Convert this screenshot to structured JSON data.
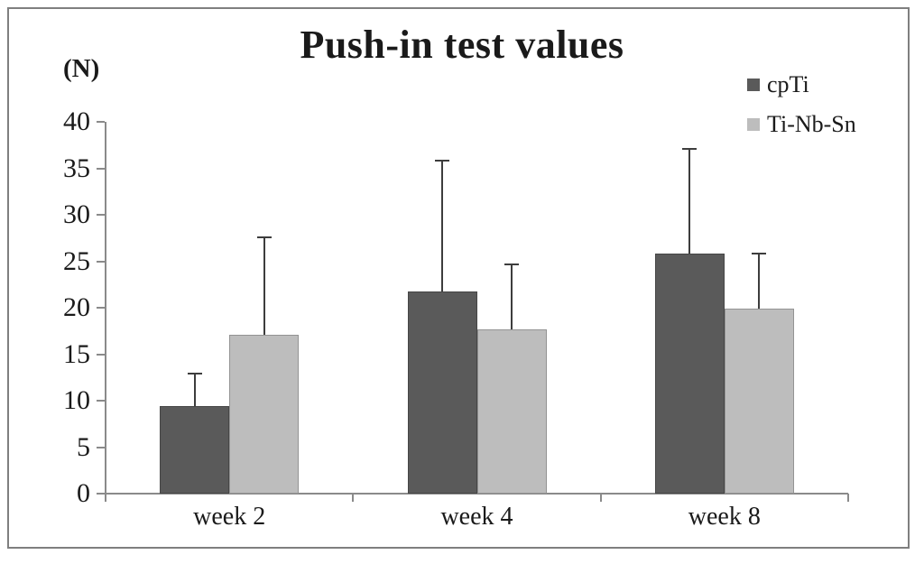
{
  "chart_data": {
    "type": "bar",
    "title": "Push-in test values",
    "ylabel": "(N)",
    "xlabel": "",
    "categories": [
      "week 2",
      "week 4",
      "week 8"
    ],
    "series": [
      {
        "name": "cpTi",
        "color": "#5a5a5a",
        "values": [
          9.4,
          21.7,
          25.8
        ],
        "errors": [
          3.5,
          14.1,
          11.3
        ]
      },
      {
        "name": "Ti-Nb-Sn",
        "color": "#bdbdbd",
        "values": [
          17.1,
          17.7,
          19.9
        ],
        "errors": [
          10.5,
          7.0,
          5.9
        ]
      }
    ],
    "ylim": [
      0,
      40
    ],
    "ytick_step": 5,
    "grid": false,
    "legend_position": "top-right",
    "axis_color": "#8a8a8a",
    "error_bar_color": "#3d3d3d",
    "frame_border_color": "#7f7f7f"
  }
}
